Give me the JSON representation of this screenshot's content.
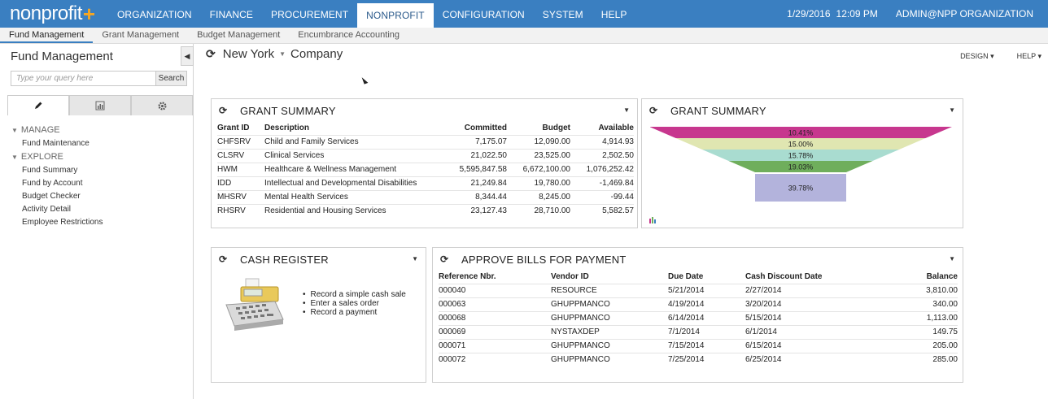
{
  "app": {
    "logo_text": "nonprofit",
    "logo_plus": "+",
    "date": "1/29/2016",
    "time": "12:09 PM",
    "user": "ADMIN@NPP ORGANIZATION"
  },
  "topnav": [
    "ORGANIZATION",
    "FINANCE",
    "PROCUREMENT",
    "NONPROFIT",
    "CONFIGURATION",
    "SYSTEM",
    "HELP"
  ],
  "subnav": [
    "Fund Management",
    "Grant Management",
    "Budget Management",
    "Encumbrance Accounting"
  ],
  "sidebar": {
    "title": "Fund Management",
    "search_placeholder": "Type your query here",
    "search_button": "Search",
    "groups": [
      {
        "label": "MANAGE",
        "links": [
          "Fund Maintenance"
        ]
      },
      {
        "label": "EXPLORE",
        "links": [
          "Fund Summary",
          "Fund by Account",
          "Budget Checker",
          "Activity Detail",
          "Employee Restrictions"
        ]
      }
    ]
  },
  "header": {
    "location": "New York",
    "company": "Company",
    "design_label": "DESIGN",
    "help_label": "HELP"
  },
  "grant_table": {
    "title": "GRANT SUMMARY",
    "columns": [
      "Grant ID",
      "Description",
      "Committed",
      "Budget",
      "Available"
    ],
    "rows": [
      [
        "CHFSRV",
        "Child and Family Services",
        "7,175.07",
        "12,090.00",
        "4,914.93"
      ],
      [
        "CLSRV",
        "Clinical Services",
        "21,022.50",
        "23,525.00",
        "2,502.50"
      ],
      [
        "HWM",
        "Healthcare & Wellness Management",
        "5,595,847.58",
        "6,672,100.00",
        "1,076,252.42"
      ],
      [
        "IDD",
        "Intellectual and Developmental Disabilities",
        "21,249.84",
        "19,780.00",
        "-1,469.84"
      ],
      [
        "MHSRV",
        "Mental Health Services",
        "8,344.44",
        "8,245.00",
        "-99.44"
      ],
      [
        "RHSRV",
        "Residential and Housing Services",
        "23,127.43",
        "28,710.00",
        "5,582.57"
      ]
    ]
  },
  "grant_funnel": {
    "title": "GRANT SUMMARY",
    "segments": [
      {
        "label": "10.41%",
        "value": 10.41,
        "color": "#c7378e"
      },
      {
        "label": "15.00%",
        "value": 15.0,
        "color": "#e0e6b1"
      },
      {
        "label": "15.78%",
        "value": 15.78,
        "color": "#a9dcd0"
      },
      {
        "label": "19.03%",
        "value": 19.03,
        "color": "#6fae5c"
      },
      {
        "label": "39.78%",
        "value": 39.78,
        "color": "#b3b3dc"
      }
    ]
  },
  "cash_register": {
    "title": "CASH REGISTER",
    "actions": [
      "Record a simple cash sale",
      "Enter a sales order",
      "Record a payment"
    ]
  },
  "bills": {
    "title": "APPROVE BILLS FOR PAYMENT",
    "columns": [
      "Reference Nbr.",
      "Vendor ID",
      "Due Date",
      "Cash Discount Date",
      "Balance"
    ],
    "rows": [
      [
        "000040",
        "RESOURCE",
        "5/21/2014",
        "2/27/2014",
        "3,810.00"
      ],
      [
        "000063",
        "GHUPPMANCO",
        "4/19/2014",
        "3/20/2014",
        "340.00"
      ],
      [
        "000068",
        "GHUPPMANCO",
        "6/14/2014",
        "5/15/2014",
        "1,113.00"
      ],
      [
        "000069",
        "NYSTAXDEP",
        "7/1/2014",
        "6/1/2014",
        "149.75"
      ],
      [
        "000071",
        "GHUPPMANCO",
        "7/15/2014",
        "6/15/2014",
        "205.00"
      ],
      [
        "000072",
        "GHUPPMANCO",
        "7/25/2014",
        "6/25/2014",
        "285.00"
      ]
    ]
  }
}
